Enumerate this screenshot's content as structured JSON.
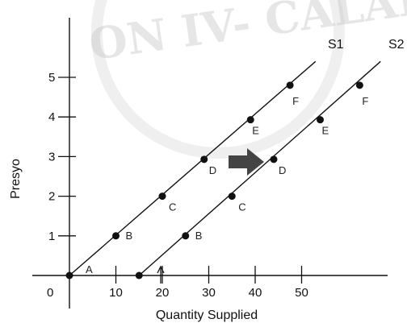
{
  "chart_data": {
    "type": "line",
    "xlabel": "Quantity Supplied",
    "ylabel": "Presyo",
    "xlim": [
      -3,
      57
    ],
    "ylim": [
      -0.4,
      6.2
    ],
    "x_ticks": [
      10,
      20,
      30,
      40,
      50
    ],
    "y_ticks": [
      1,
      2,
      3,
      4,
      5
    ],
    "origin_label": "0",
    "grid": false,
    "series": [
      {
        "name": "S1",
        "points": [
          {
            "label": "A",
            "x": 0,
            "y": 0
          },
          {
            "label": "B",
            "x": 10,
            "y": 1
          },
          {
            "label": "C",
            "x": 20,
            "y": 2
          },
          {
            "label": "D",
            "x": 29,
            "y": 2.93
          },
          {
            "label": "E",
            "x": 39,
            "y": 3.93
          },
          {
            "label": "F",
            "x": 47.5,
            "y": 4.8
          }
        ],
        "line_end": {
          "x": 53,
          "y": 5.4
        }
      },
      {
        "name": "S2",
        "points": [
          {
            "label": "",
            "x": 15,
            "y": 0
          },
          {
            "label": "B",
            "x": 25,
            "y": 1
          },
          {
            "label": "C",
            "x": 35,
            "y": 2
          },
          {
            "label": "D",
            "x": 44,
            "y": 2.93
          },
          {
            "label": "E",
            "x": 54,
            "y": 3.93
          },
          {
            "label": "F",
            "x": 62.5,
            "y": 4.8
          }
        ],
        "line_end": {
          "x": 67,
          "y": 5.4
        }
      }
    ],
    "annotations": {
      "shift_arrow": "right",
      "pointer_arrow_x": 20
    }
  }
}
